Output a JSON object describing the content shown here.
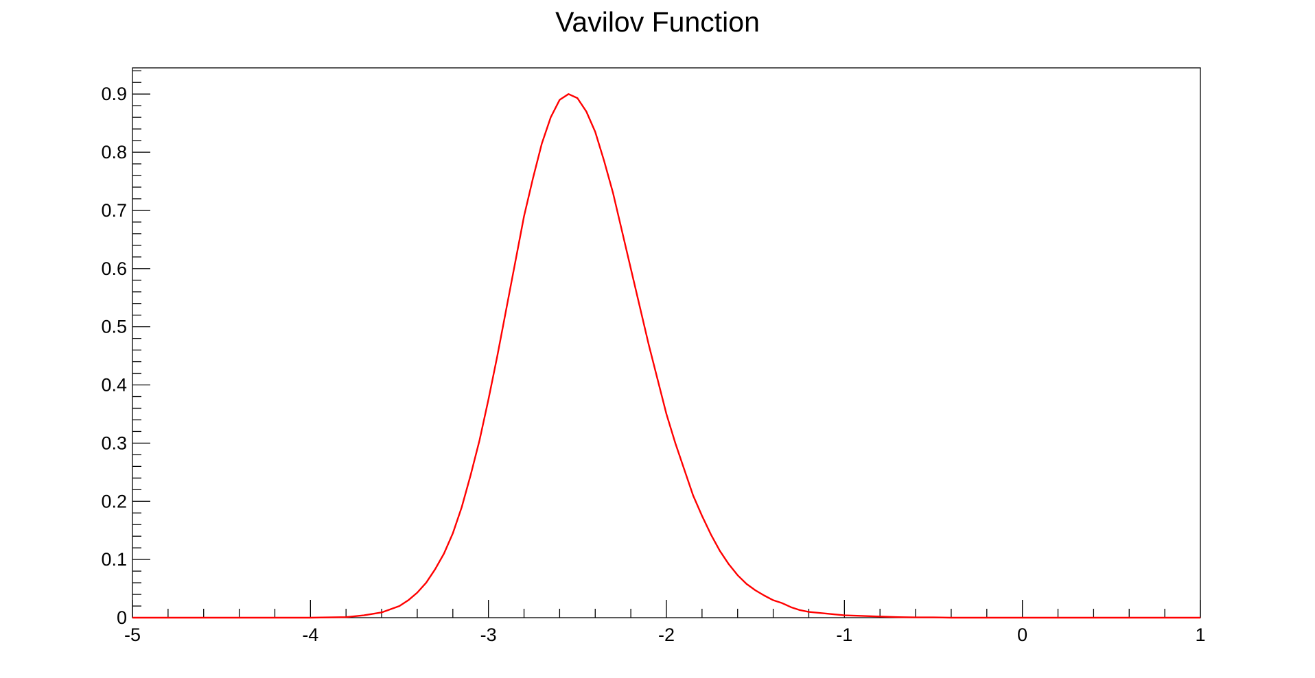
{
  "chart_data": {
    "type": "line",
    "title": "Vavilov Function",
    "xlabel": "",
    "ylabel": "",
    "xlim": [
      -5,
      1
    ],
    "ylim": [
      0,
      0.945
    ],
    "grid": false,
    "legend": "none",
    "x_ticks": [
      -5,
      -4,
      -3,
      -2,
      -1,
      0,
      1
    ],
    "x_tick_labels": [
      "-5",
      "-4",
      "-3",
      "-2",
      "-1",
      "0",
      "1"
    ],
    "y_ticks": [
      0,
      0.1,
      0.2,
      0.3,
      0.4,
      0.5,
      0.6,
      0.7,
      0.8,
      0.9
    ],
    "y_tick_labels": [
      "0",
      "0.1",
      "0.2",
      "0.3",
      "0.4",
      "0.5",
      "0.6",
      "0.7",
      "0.8",
      "0.9"
    ],
    "colors": {
      "line": "#ff0000",
      "axes": "#000000",
      "background": "#ffffff"
    },
    "series": [
      {
        "x": [
          -5.0,
          -4.5,
          -4.0,
          -3.8,
          -3.7,
          -3.6,
          -3.5,
          -3.45,
          -3.4,
          -3.35,
          -3.3,
          -3.25,
          -3.2,
          -3.15,
          -3.1,
          -3.05,
          -3.0,
          -2.95,
          -2.9,
          -2.85,
          -2.8,
          -2.75,
          -2.7,
          -2.65,
          -2.6,
          -2.55,
          -2.5,
          -2.45,
          -2.4,
          -2.35,
          -2.3,
          -2.25,
          -2.2,
          -2.15,
          -2.1,
          -2.05,
          -2.0,
          -1.95,
          -1.9,
          -1.85,
          -1.8,
          -1.75,
          -1.7,
          -1.65,
          -1.6,
          -1.55,
          -1.5,
          -1.45,
          -1.4,
          -1.35,
          -1.3,
          -1.25,
          -1.2,
          -1.1,
          -1.0,
          -0.9,
          -0.8,
          -0.7,
          -0.6,
          -0.5,
          -0.4,
          -0.2,
          0.0,
          0.5,
          1.0
        ],
        "values": [
          0.0,
          0.0,
          0.0,
          0.001,
          0.004,
          0.009,
          0.02,
          0.03,
          0.043,
          0.06,
          0.083,
          0.11,
          0.145,
          0.19,
          0.245,
          0.305,
          0.375,
          0.45,
          0.53,
          0.61,
          0.69,
          0.755,
          0.815,
          0.86,
          0.89,
          0.9,
          0.893,
          0.87,
          0.835,
          0.785,
          0.73,
          0.665,
          0.6,
          0.535,
          0.47,
          0.41,
          0.35,
          0.3,
          0.255,
          0.21,
          0.175,
          0.143,
          0.115,
          0.092,
          0.073,
          0.058,
          0.047,
          0.038,
          0.03,
          0.025,
          0.018,
          0.013,
          0.01,
          0.007,
          0.004,
          0.003,
          0.002,
          0.001,
          0.0005,
          0.0005,
          0.0,
          0.0,
          0.0,
          0.0,
          0.0
        ]
      }
    ]
  }
}
